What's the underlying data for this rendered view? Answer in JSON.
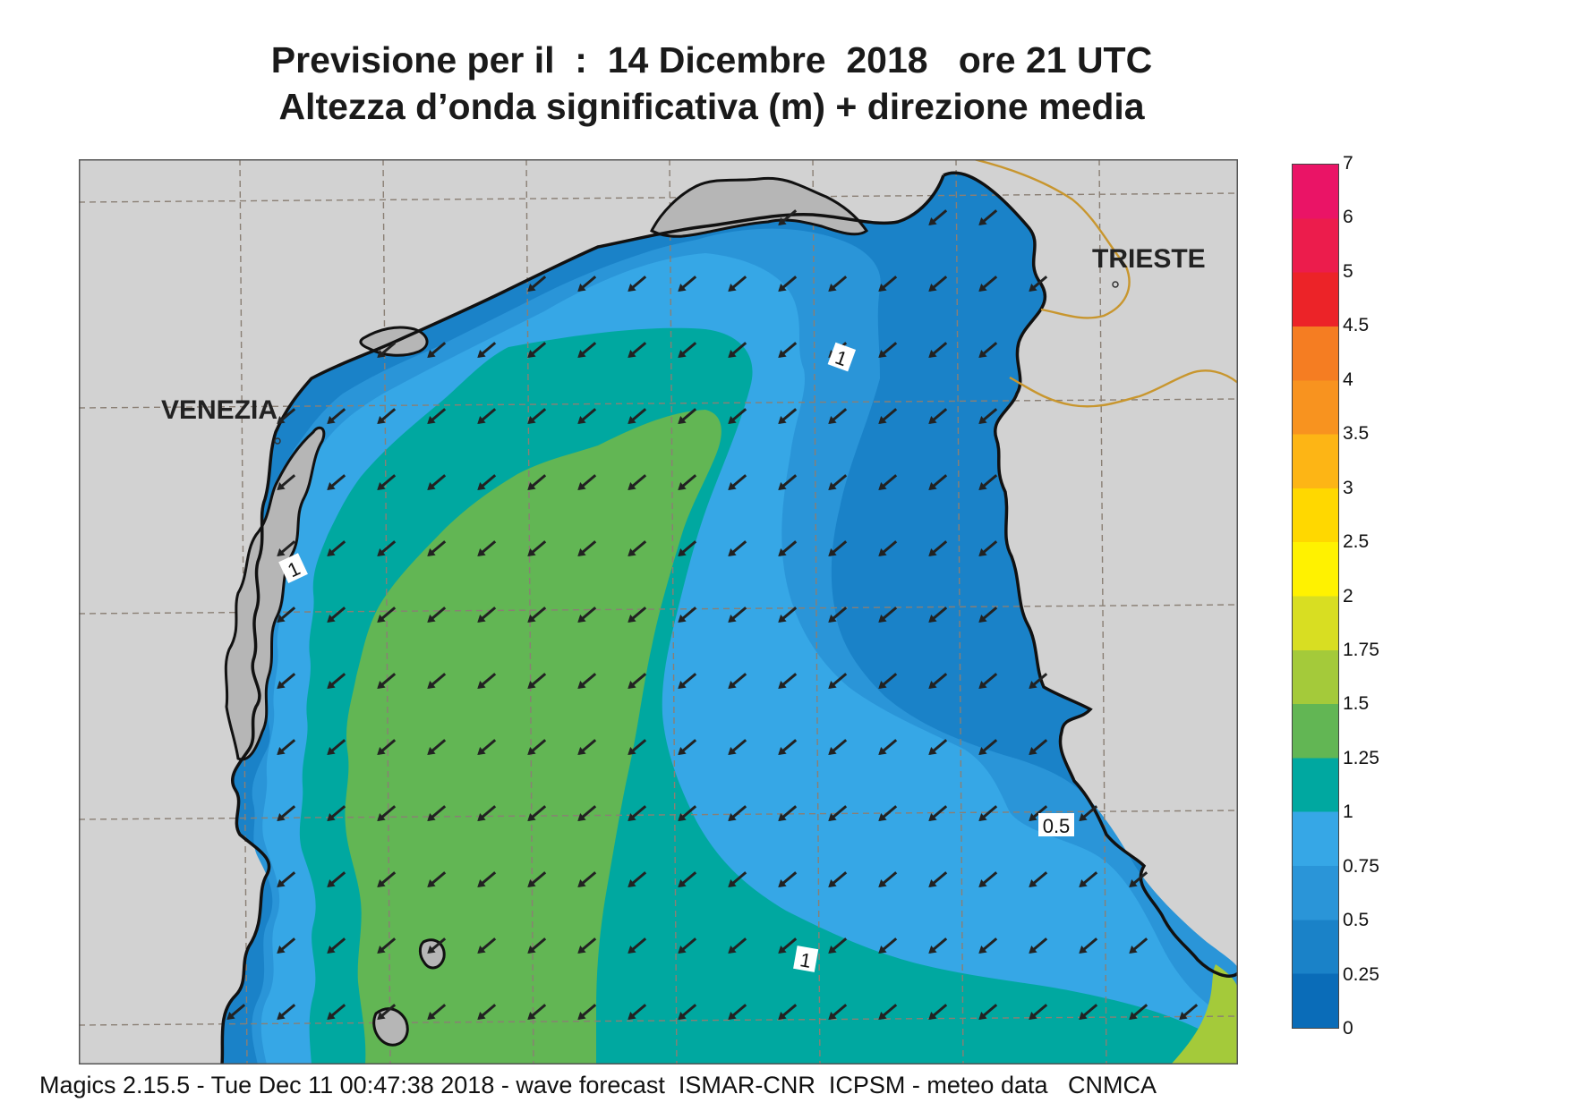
{
  "title": {
    "line1": "Previsione per il  :  14 Dicembre  2018   ore 21 UTC",
    "line2": "Altezza d’onda significativa (m) + direzione media"
  },
  "cities": {
    "venezia": "VENEZIA",
    "trieste": "TRIESTE"
  },
  "contour_labels": [
    "1",
    "1",
    "1",
    "0.5"
  ],
  "colorbar": {
    "ticks": [
      "0",
      "0.25",
      "0.5",
      "0.75",
      "1",
      "1.25",
      "1.5",
      "1.75",
      "2",
      "2.5",
      "3",
      "3.5",
      "4",
      "4.5",
      "5",
      "6",
      "7"
    ],
    "colors": [
      "#0a6cb8",
      "#1a82c8",
      "#2a95d8",
      "#36a7e6",
      "#00a8a0",
      "#62b654",
      "#a4ca3a",
      "#d8de22",
      "#fff200",
      "#ffd800",
      "#fdb515",
      "#f8931f",
      "#f57d22",
      "#ec2328",
      "#ec1c4c",
      "#ea1466"
    ]
  },
  "colors": {
    "land": "#d2d2d2",
    "lagoon_land": "#b6b6b6",
    "sea_deep_blue": "#1a82c8",
    "sea_mid_blue": "#2a95d8",
    "sea_light_blue": "#36a7e6",
    "sea_teal": "#00a8a0",
    "sea_green": "#62b654",
    "sea_lightgreen": "#a4ca3a",
    "coast": "#111111",
    "border": "#c8962e",
    "arrow": "#222222"
  },
  "arrow_direction": "south-west",
  "footer": "Magics 2.15.5 - Tue Dec 11 00:47:38 2018 - wave forecast  ISMAR-CNR  ICPSM - meteo data   CNMCA"
}
